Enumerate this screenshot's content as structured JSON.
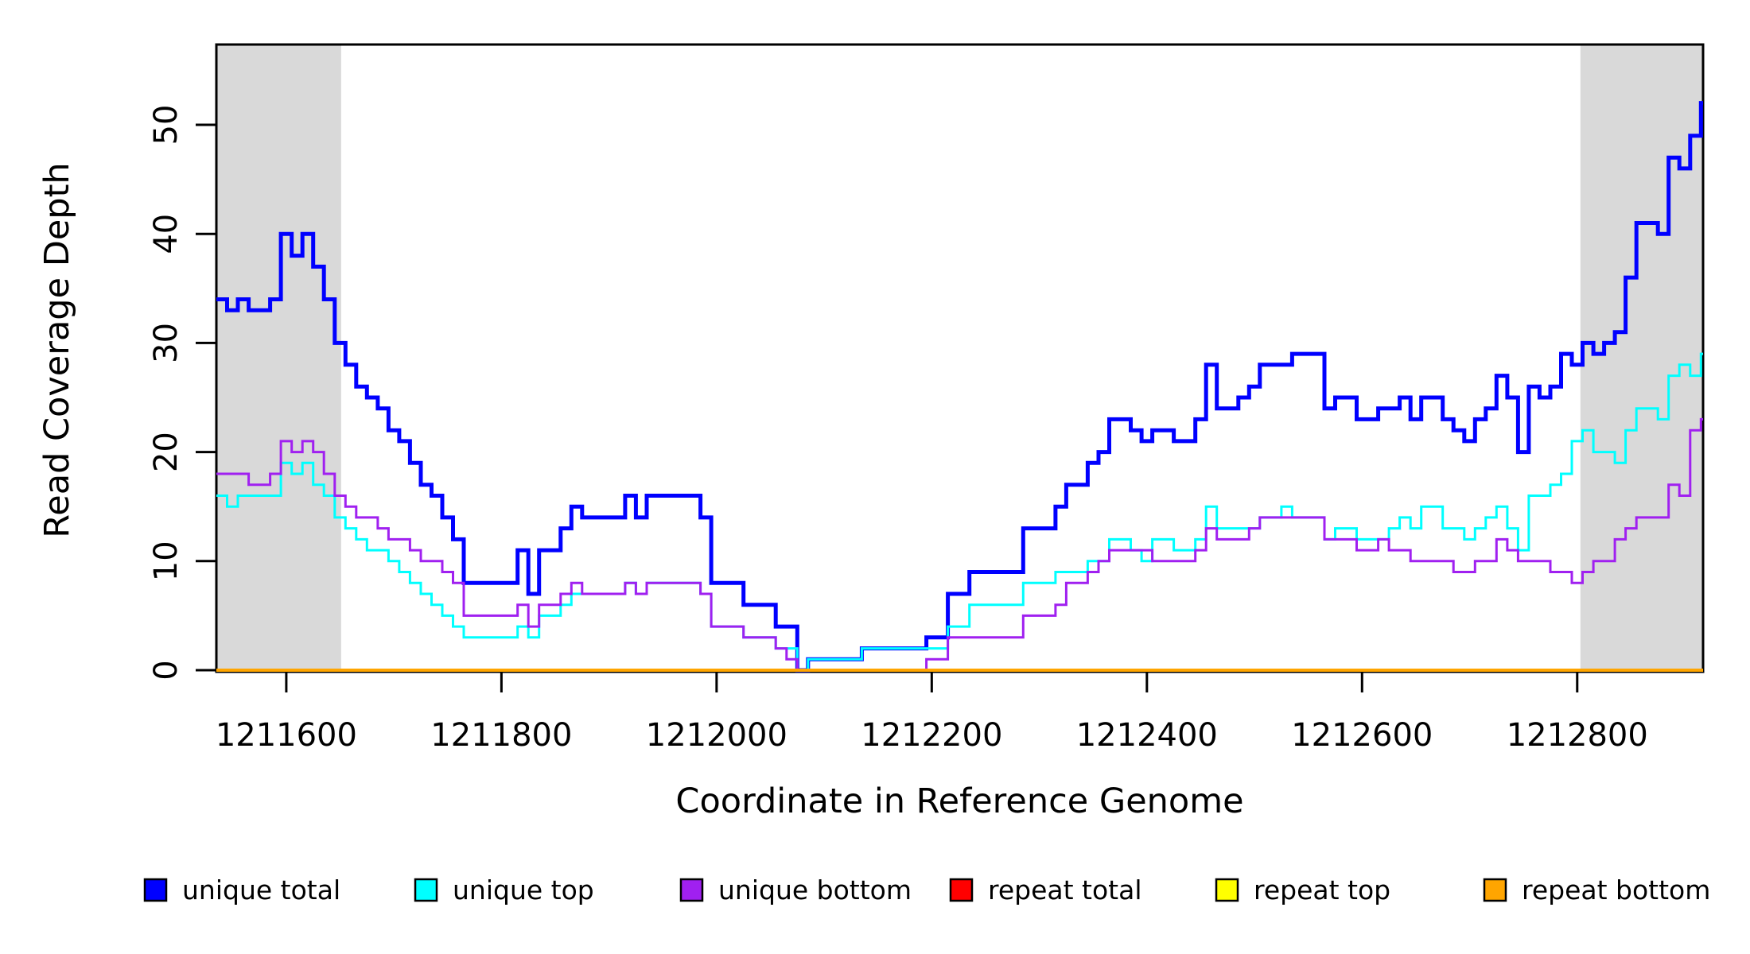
{
  "chart_data": {
    "type": "line",
    "subtype": "step-coverage-plot",
    "title": "",
    "xlabel": "Coordinate in Reference Genome",
    "ylabel": "Read Coverage Depth",
    "x_ticks": [
      1211600,
      1211800,
      1212000,
      1212200,
      1212400,
      1212600,
      1212800
    ],
    "y_ticks": [
      0,
      10,
      20,
      30,
      40,
      50
    ],
    "xlim": [
      1211535,
      1212917
    ],
    "ylim": [
      0,
      57.5
    ],
    "grid": false,
    "legend_position": "bottom",
    "background_color": "#ffffff",
    "shade_color": "#d9d9d9",
    "shaded_regions": [
      {
        "from": 1211535,
        "to": 1211651
      },
      {
        "from": 1212803,
        "to": 1212917
      }
    ],
    "x_start": 1211535,
    "x_step": 10,
    "series": [
      {
        "name": "unique total",
        "color": "#0000ff",
        "width": 5,
        "values": [
          34,
          33,
          34,
          33,
          33,
          34,
          40,
          38,
          40,
          37,
          34,
          30,
          28,
          26,
          25,
          24,
          22,
          21,
          19,
          17,
          16,
          14,
          12,
          8,
          8,
          8,
          8,
          8,
          11,
          7,
          11,
          11,
          13,
          15,
          14,
          14,
          14,
          14,
          16,
          14,
          16,
          16,
          16,
          16,
          16,
          14,
          8,
          8,
          8,
          6,
          6,
          6,
          4,
          4,
          0,
          1,
          1,
          1,
          1,
          1,
          2,
          2,
          2,
          2,
          2,
          2,
          3,
          3,
          7,
          7,
          9,
          9,
          9,
          9,
          9,
          13,
          13,
          13,
          15,
          17,
          17,
          19,
          20,
          23,
          23,
          22,
          21,
          22,
          22,
          21,
          21,
          23,
          28,
          24,
          24,
          25,
          26,
          28,
          28,
          28,
          29,
          29,
          29,
          24,
          25,
          25,
          23,
          23,
          24,
          24,
          25,
          23,
          25,
          25,
          23,
          22,
          21,
          23,
          24,
          27,
          25,
          20,
          26,
          25,
          26,
          29,
          28,
          30,
          29,
          30,
          31,
          36,
          41,
          41,
          40,
          47,
          46,
          49,
          52
        ]
      },
      {
        "name": "unique top",
        "color": "#00ffff",
        "width": 3,
        "values": [
          16,
          15,
          16,
          16,
          16,
          16,
          19,
          18,
          19,
          17,
          16,
          14,
          13,
          12,
          11,
          11,
          10,
          9,
          8,
          7,
          6,
          5,
          4,
          3,
          3,
          3,
          3,
          3,
          4,
          3,
          5,
          5,
          6,
          7,
          7,
          7,
          7,
          7,
          8,
          7,
          8,
          8,
          8,
          8,
          8,
          7,
          4,
          4,
          4,
          3,
          3,
          3,
          2,
          2,
          0,
          1,
          1,
          1,
          1,
          1,
          2,
          2,
          2,
          2,
          2,
          2,
          2,
          2,
          4,
          4,
          6,
          6,
          6,
          6,
          6,
          8,
          8,
          8,
          9,
          9,
          9,
          10,
          10,
          12,
          12,
          11,
          10,
          12,
          12,
          11,
          11,
          12,
          15,
          13,
          13,
          13,
          13,
          14,
          14,
          15,
          14,
          14,
          14,
          12,
          13,
          13,
          12,
          12,
          12,
          13,
          14,
          13,
          15,
          15,
          13,
          13,
          12,
          13,
          14,
          15,
          13,
          11,
          16,
          16,
          17,
          18,
          21,
          22,
          20,
          20,
          19,
          22,
          24,
          24,
          23,
          27,
          28,
          27,
          29
        ]
      },
      {
        "name": "unique bottom",
        "color": "#a020f0",
        "width": 3,
        "values": [
          18,
          18,
          18,
          17,
          17,
          18,
          21,
          20,
          21,
          20,
          18,
          16,
          15,
          14,
          14,
          13,
          12,
          12,
          11,
          10,
          10,
          9,
          8,
          5,
          5,
          5,
          5,
          5,
          6,
          4,
          6,
          6,
          7,
          8,
          7,
          7,
          7,
          7,
          8,
          7,
          8,
          8,
          8,
          8,
          8,
          7,
          4,
          4,
          4,
          3,
          3,
          3,
          2,
          1,
          0,
          0,
          0,
          0,
          0,
          0,
          0,
          0,
          0,
          0,
          0,
          0,
          1,
          1,
          3,
          3,
          3,
          3,
          3,
          3,
          3,
          5,
          5,
          5,
          6,
          8,
          8,
          9,
          10,
          11,
          11,
          11,
          11,
          10,
          10,
          10,
          10,
          11,
          13,
          12,
          12,
          12,
          13,
          14,
          14,
          14,
          14,
          14,
          14,
          12,
          12,
          12,
          11,
          11,
          12,
          11,
          11,
          10,
          10,
          10,
          10,
          9,
          9,
          10,
          10,
          12,
          11,
          10,
          10,
          10,
          9,
          9,
          8,
          9,
          10,
          10,
          12,
          13,
          14,
          14,
          14,
          17,
          16,
          22,
          23
        ]
      },
      {
        "name": "repeat total",
        "color": "#ff0000",
        "width": 3,
        "constant": 0
      },
      {
        "name": "repeat top",
        "color": "#ffff00",
        "width": 3,
        "constant": 0
      },
      {
        "name": "repeat bottom",
        "color": "#ffa500",
        "width": 4,
        "constant": 0
      }
    ],
    "legend": [
      {
        "label": "unique total",
        "color": "#0000ff"
      },
      {
        "label": "unique top",
        "color": "#00ffff"
      },
      {
        "label": "unique bottom",
        "color": "#a020f0"
      },
      {
        "label": "repeat total",
        "color": "#ff0000"
      },
      {
        "label": "repeat top",
        "color": "#ffff00"
      },
      {
        "label": "repeat bottom",
        "color": "#ffa500"
      }
    ],
    "axis_color": "#000000"
  },
  "labels": {
    "x_title": "Coordinate in Reference Genome",
    "y_title": "Read Coverage Depth"
  }
}
